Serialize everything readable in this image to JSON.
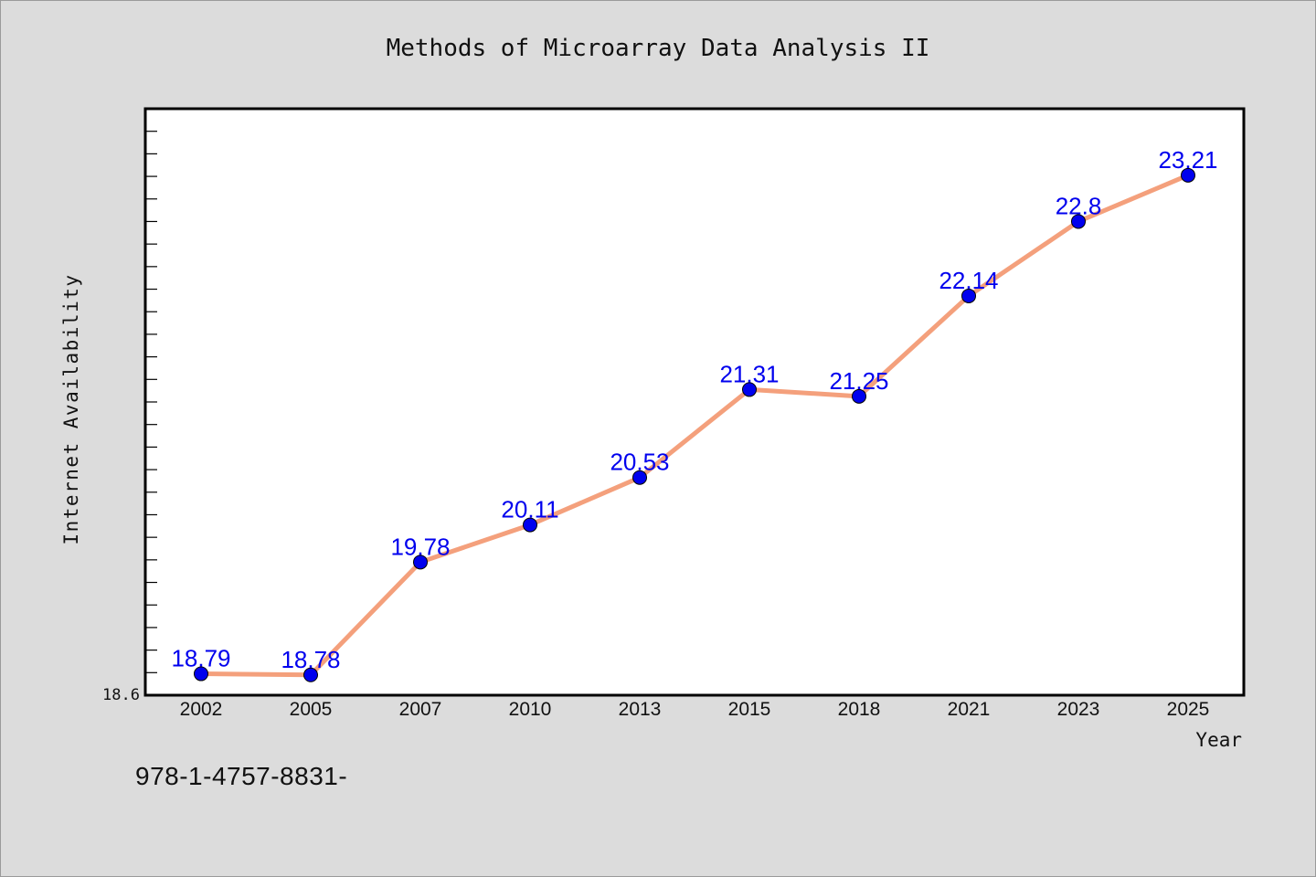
{
  "chart_data": {
    "type": "line",
    "title": "Methods of Microarray Data Analysis II",
    "xlabel": "Year",
    "ylabel": "Internet Availability",
    "categories": [
      "2002",
      "2005",
      "2007",
      "2010",
      "2013",
      "2015",
      "2018",
      "2021",
      "2023",
      "2025"
    ],
    "series": [
      {
        "values": [
          18.79,
          18.78,
          19.78,
          20.11,
          20.53,
          21.31,
          21.25,
          22.14,
          22.8,
          23.21
        ],
        "data_labels": [
          "18.79",
          "18.78",
          "19.78",
          "20.11",
          "20.53",
          "21.31",
          "21.25",
          "22.14",
          "22.8",
          "23.21"
        ]
      }
    ],
    "ylim": [
      18.6,
      23.8
    ],
    "y_tick_label": "18.6",
    "grid": false,
    "legend": "none",
    "colors": {
      "line": "#f4a07c",
      "marker": "#0000ee",
      "data_label": "#0000ee",
      "plot_background": "#ffffff",
      "page_background": "#dcdcdc"
    }
  },
  "footer": {
    "code": "978-1-4757-8831-"
  }
}
